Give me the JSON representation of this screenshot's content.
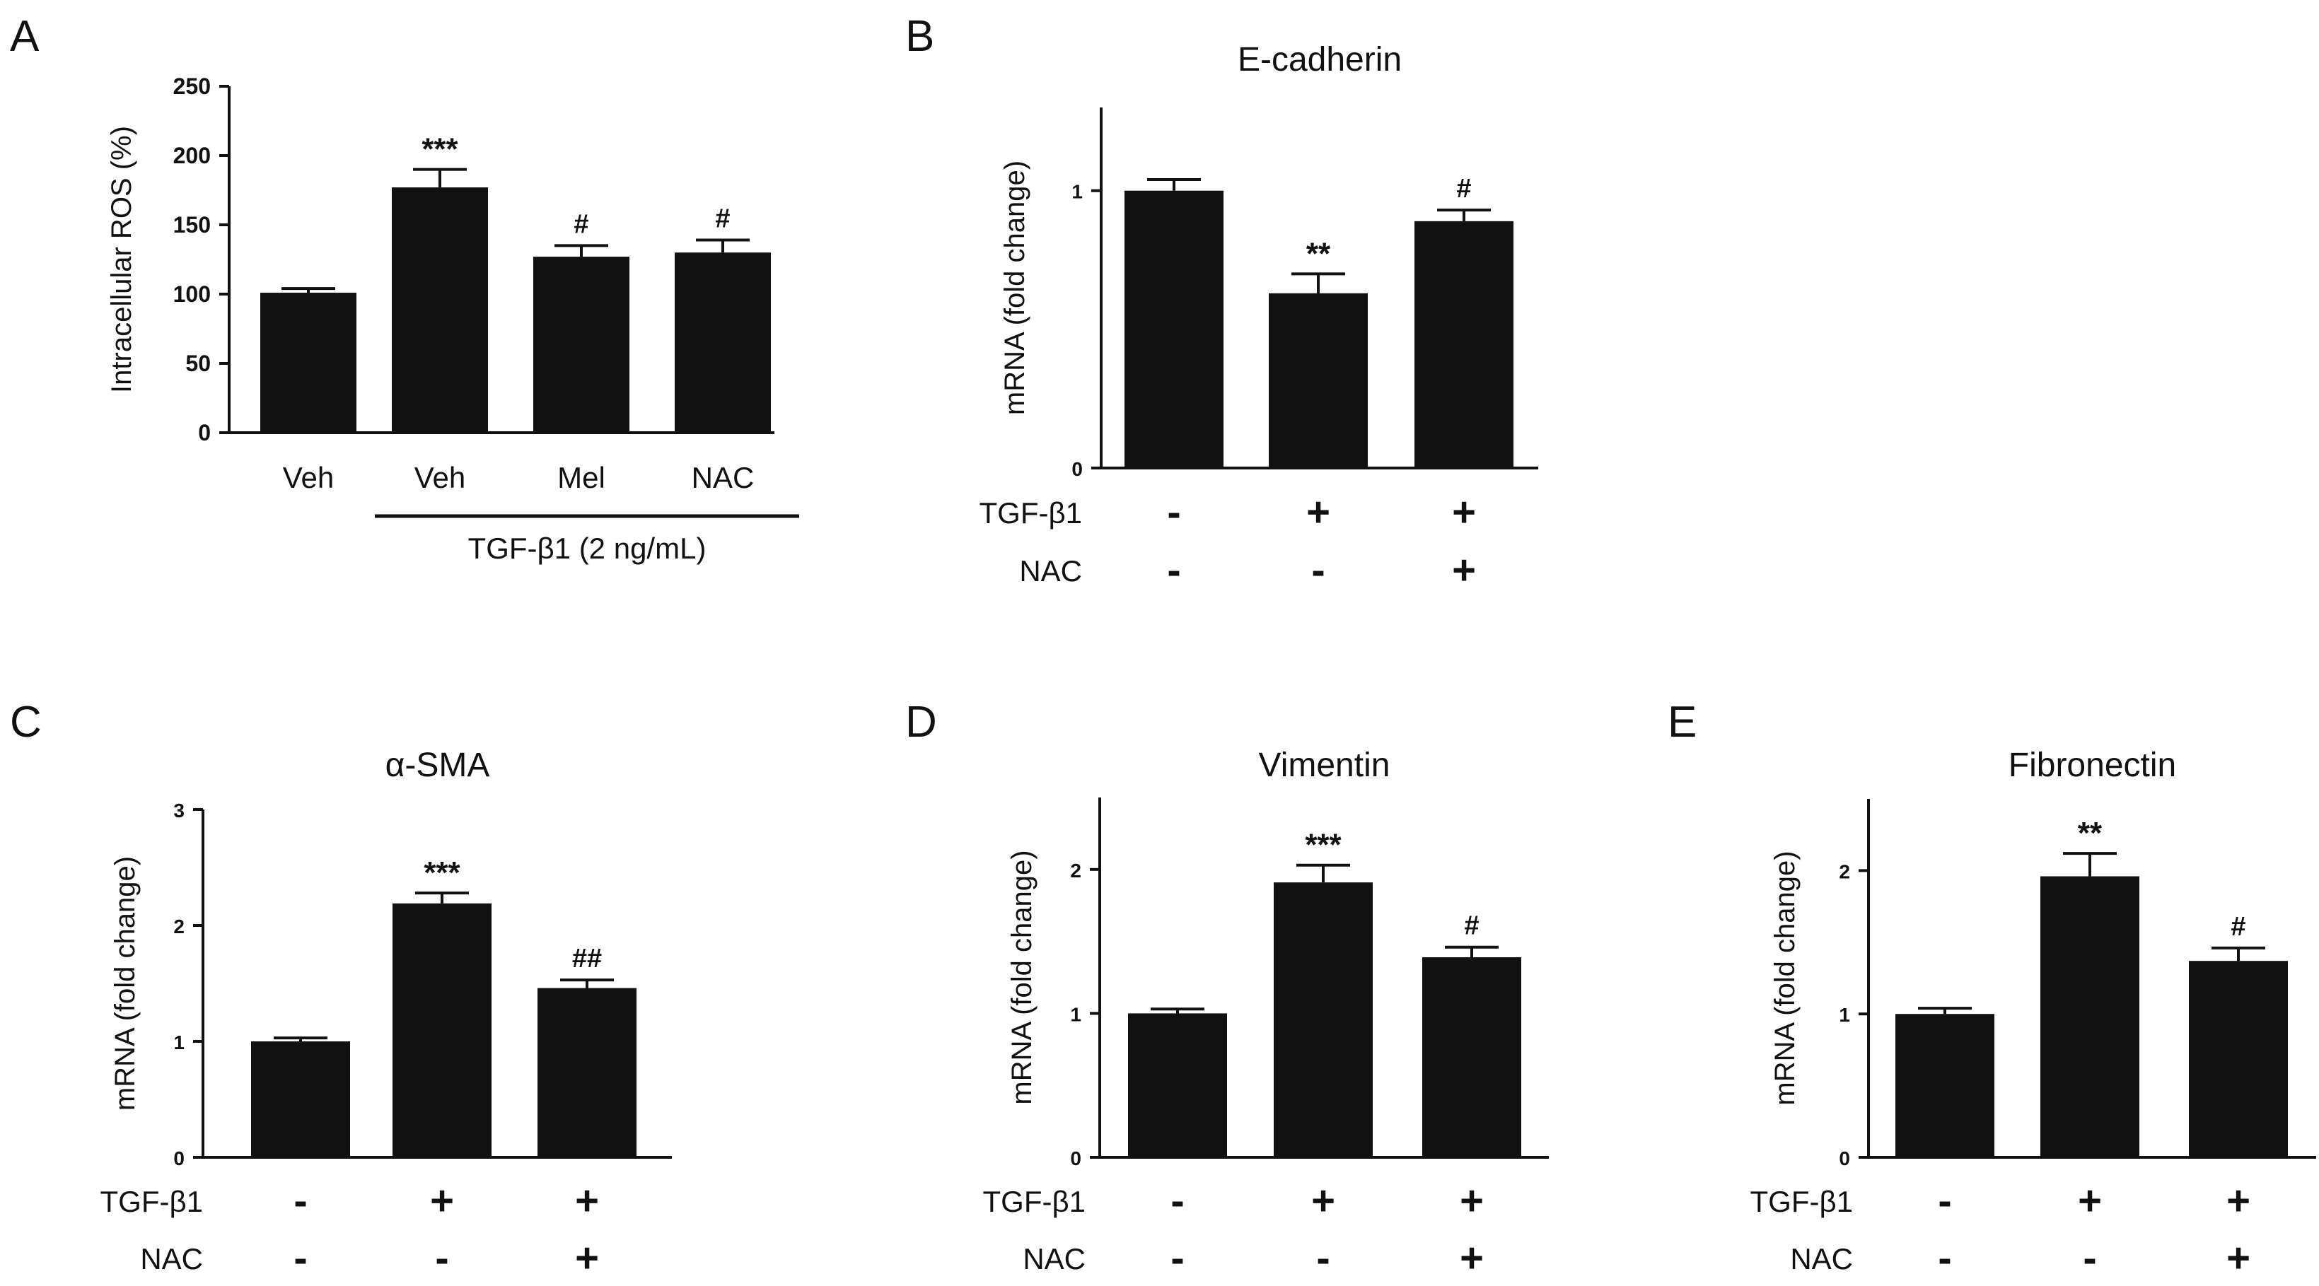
{
  "chart_data": [
    {
      "id": "A",
      "panel_label": "A",
      "type": "bar",
      "title": "",
      "ylabel": "Intracellular ROS (%)",
      "ylim": [
        0,
        250
      ],
      "yticks": [
        "0",
        "50",
        "100",
        "150",
        "200",
        "250"
      ],
      "categories": [
        "Veh",
        "Veh",
        "Mel",
        "NAC"
      ],
      "values": [
        101,
        177,
        127,
        130
      ],
      "errors": [
        3,
        13,
        8,
        9
      ],
      "significance": [
        "",
        "***",
        "#",
        "#"
      ],
      "group_label": "TGF-β1 (2 ng/mL)"
    },
    {
      "id": "B",
      "panel_label": "B",
      "type": "bar",
      "title": "E-cadherin",
      "ylabel": "mRNA (fold change)",
      "ylim": [
        0,
        1.3
      ],
      "yticks": [
        "0",
        "1"
      ],
      "values": [
        1.0,
        0.63,
        0.89
      ],
      "errors": [
        0.04,
        0.07,
        0.04
      ],
      "significance": [
        "",
        "**",
        "#"
      ],
      "treatments": [
        {
          "name": "TGF-β1",
          "signs": [
            "-",
            "+",
            "+"
          ]
        },
        {
          "name": "NAC",
          "signs": [
            "-",
            "-",
            "+"
          ]
        }
      ]
    },
    {
      "id": "C",
      "panel_label": "C",
      "type": "bar",
      "title": "α-SMA",
      "ylabel": "mRNA (fold change)",
      "ylim": [
        0,
        3
      ],
      "yticks": [
        "0",
        "1",
        "2",
        "3"
      ],
      "values": [
        1.0,
        2.19,
        1.46
      ],
      "errors": [
        0.03,
        0.09,
        0.07
      ],
      "significance": [
        "",
        "***",
        "##"
      ],
      "treatments": [
        {
          "name": "TGF-β1",
          "signs": [
            "-",
            "+",
            "+"
          ]
        },
        {
          "name": "NAC",
          "signs": [
            "-",
            "-",
            "+"
          ]
        }
      ]
    },
    {
      "id": "D",
      "panel_label": "D",
      "type": "bar",
      "title": "Vimentin",
      "ylabel": "mRNA (fold change)",
      "ylim": [
        0,
        2.5
      ],
      "yticks": [
        "0",
        "1",
        "2"
      ],
      "values": [
        1.0,
        1.91,
        1.39
      ],
      "errors": [
        0.03,
        0.12,
        0.07
      ],
      "significance": [
        "",
        "***",
        "#"
      ],
      "treatments": [
        {
          "name": "TGF-β1",
          "signs": [
            "-",
            "+",
            "+"
          ]
        },
        {
          "name": "NAC",
          "signs": [
            "-",
            "-",
            "+"
          ]
        }
      ]
    },
    {
      "id": "E",
      "panel_label": "E",
      "type": "bar",
      "title": "Fibronectin",
      "ylabel": "mRNA (fold change)",
      "ylim": [
        0,
        2.5
      ],
      "yticks": [
        "0",
        "1",
        "2"
      ],
      "values": [
        1.0,
        1.96,
        1.37
      ],
      "errors": [
        0.04,
        0.16,
        0.09
      ],
      "significance": [
        "",
        "**",
        "#"
      ],
      "treatments": [
        {
          "name": "TGF-β1",
          "signs": [
            "-",
            "+",
            "+"
          ]
        },
        {
          "name": "NAC",
          "signs": [
            "-",
            "-",
            "+"
          ]
        }
      ]
    }
  ]
}
